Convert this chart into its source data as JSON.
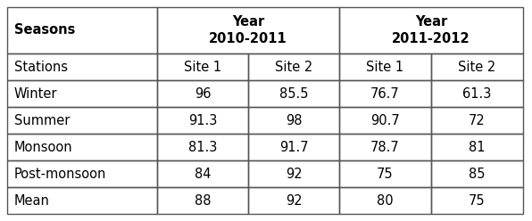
{
  "header_row1": [
    "Seasons",
    "Year\n2010-2011",
    "Year\n2011-2012"
  ],
  "header_row2": [
    "Stations",
    "Site 1",
    "Site 2",
    "Site 1",
    "Site 2"
  ],
  "rows": [
    [
      "Winter",
      "96",
      "85.5",
      "76.7",
      "61.3"
    ],
    [
      "Summer",
      "91.3",
      "98",
      "90.7",
      "72"
    ],
    [
      "Monsoon",
      "81.3",
      "91.7",
      "78.7",
      "81"
    ],
    [
      "Post-monsoon",
      "84",
      "92",
      "75",
      "85"
    ],
    [
      "Mean",
      "88",
      "92",
      "80",
      "75"
    ]
  ],
  "bg_color": "#ffffff",
  "border_color": "#555555",
  "text_color": "#000000",
  "header_fontsize": 10.5,
  "body_fontsize": 10.5
}
